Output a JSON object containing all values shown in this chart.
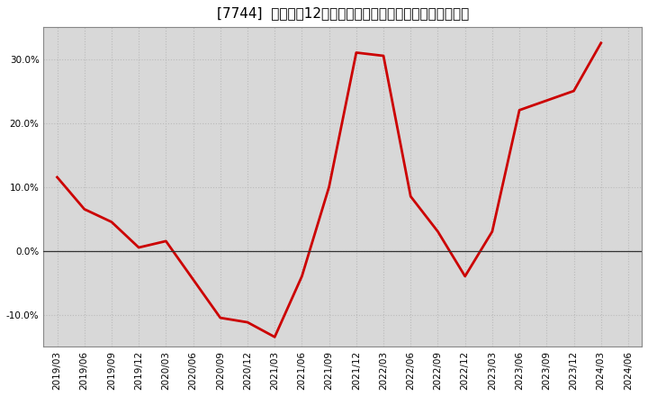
{
  "title": "[7744]  売上高の12か月移動合計の対前年同期増減率の推移",
  "x_labels": [
    "2019/03",
    "2019/06",
    "2019/09",
    "2019/12",
    "2020/03",
    "2020/06",
    "2020/09",
    "2020/12",
    "2021/03",
    "2021/06",
    "2021/09",
    "2021/12",
    "2022/03",
    "2022/06",
    "2022/09",
    "2022/12",
    "2023/03",
    "2023/06",
    "2023/09",
    "2023/12",
    "2024/03",
    "2024/06"
  ],
  "y_values": [
    11.5,
    6.5,
    4.5,
    0.5,
    1.5,
    -4.5,
    -10.5,
    -11.2,
    -13.5,
    -4.0,
    10.0,
    31.0,
    30.5,
    8.5,
    3.0,
    -4.0,
    3.0,
    22.0,
    23.5,
    25.0,
    32.5,
    null
  ],
  "line_color": "#cc0000",
  "line_width": 2.0,
  "ylim": [
    -15,
    35
  ],
  "yticks": [
    -10.0,
    0.0,
    10.0,
    20.0,
    30.0
  ],
  "ytick_labels": [
    "-10.0%",
    "0.0%",
    "10.0%",
    "20.0%",
    "30.0%"
  ],
  "grid_color": "#bbbbbb",
  "bg_color": "#ffffff",
  "plot_bg_color": "#d8d8d8",
  "title_fontsize": 11,
  "tick_fontsize": 7.5
}
